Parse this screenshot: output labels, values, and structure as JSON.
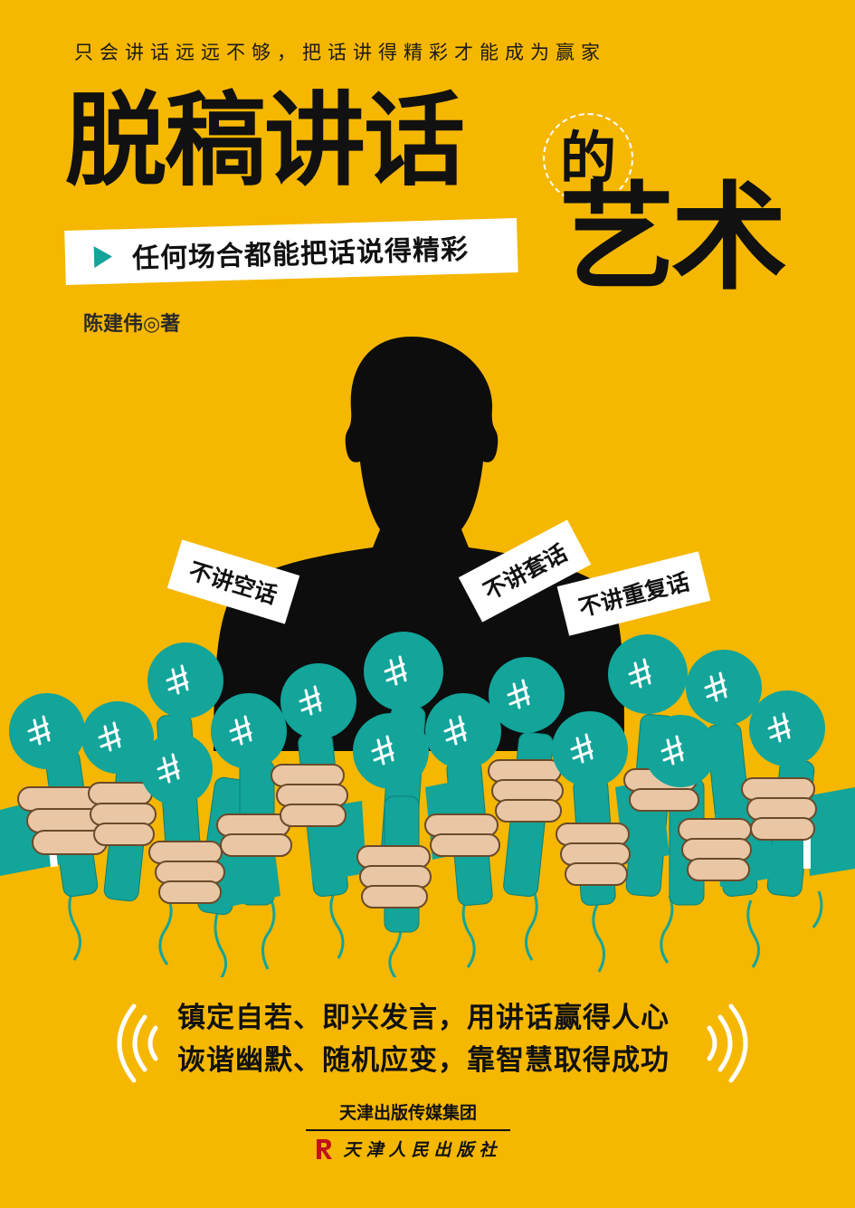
{
  "cover": {
    "tagline": "只会讲话远远不够，把话讲得精彩才能成为赢家",
    "title_main": "脱稿讲话",
    "title_de": "的",
    "title_art": "艺术",
    "subtitle": "任何场合都能把话说得精彩",
    "author": "陈建伟◎著"
  },
  "slogans": [
    "不讲空话",
    "不讲套话",
    "不讲重复话"
  ],
  "promo": {
    "line1": "镇定自若、即兴发言，用讲话赢得人心",
    "line2": "诙谐幽默、随机应变，靠智慧取得成功"
  },
  "publisher": {
    "group": "天津出版传媒集团",
    "house": "天津人民出版社"
  },
  "colors": {
    "background": "#f5b700",
    "teal": "#13a49a",
    "skin": "#e9c7a5",
    "silhouette": "#0d0d0d"
  },
  "icons": [
    "play-icon",
    "sound-wave-icon",
    "microphone-icon",
    "publisher-logo-icon"
  ]
}
